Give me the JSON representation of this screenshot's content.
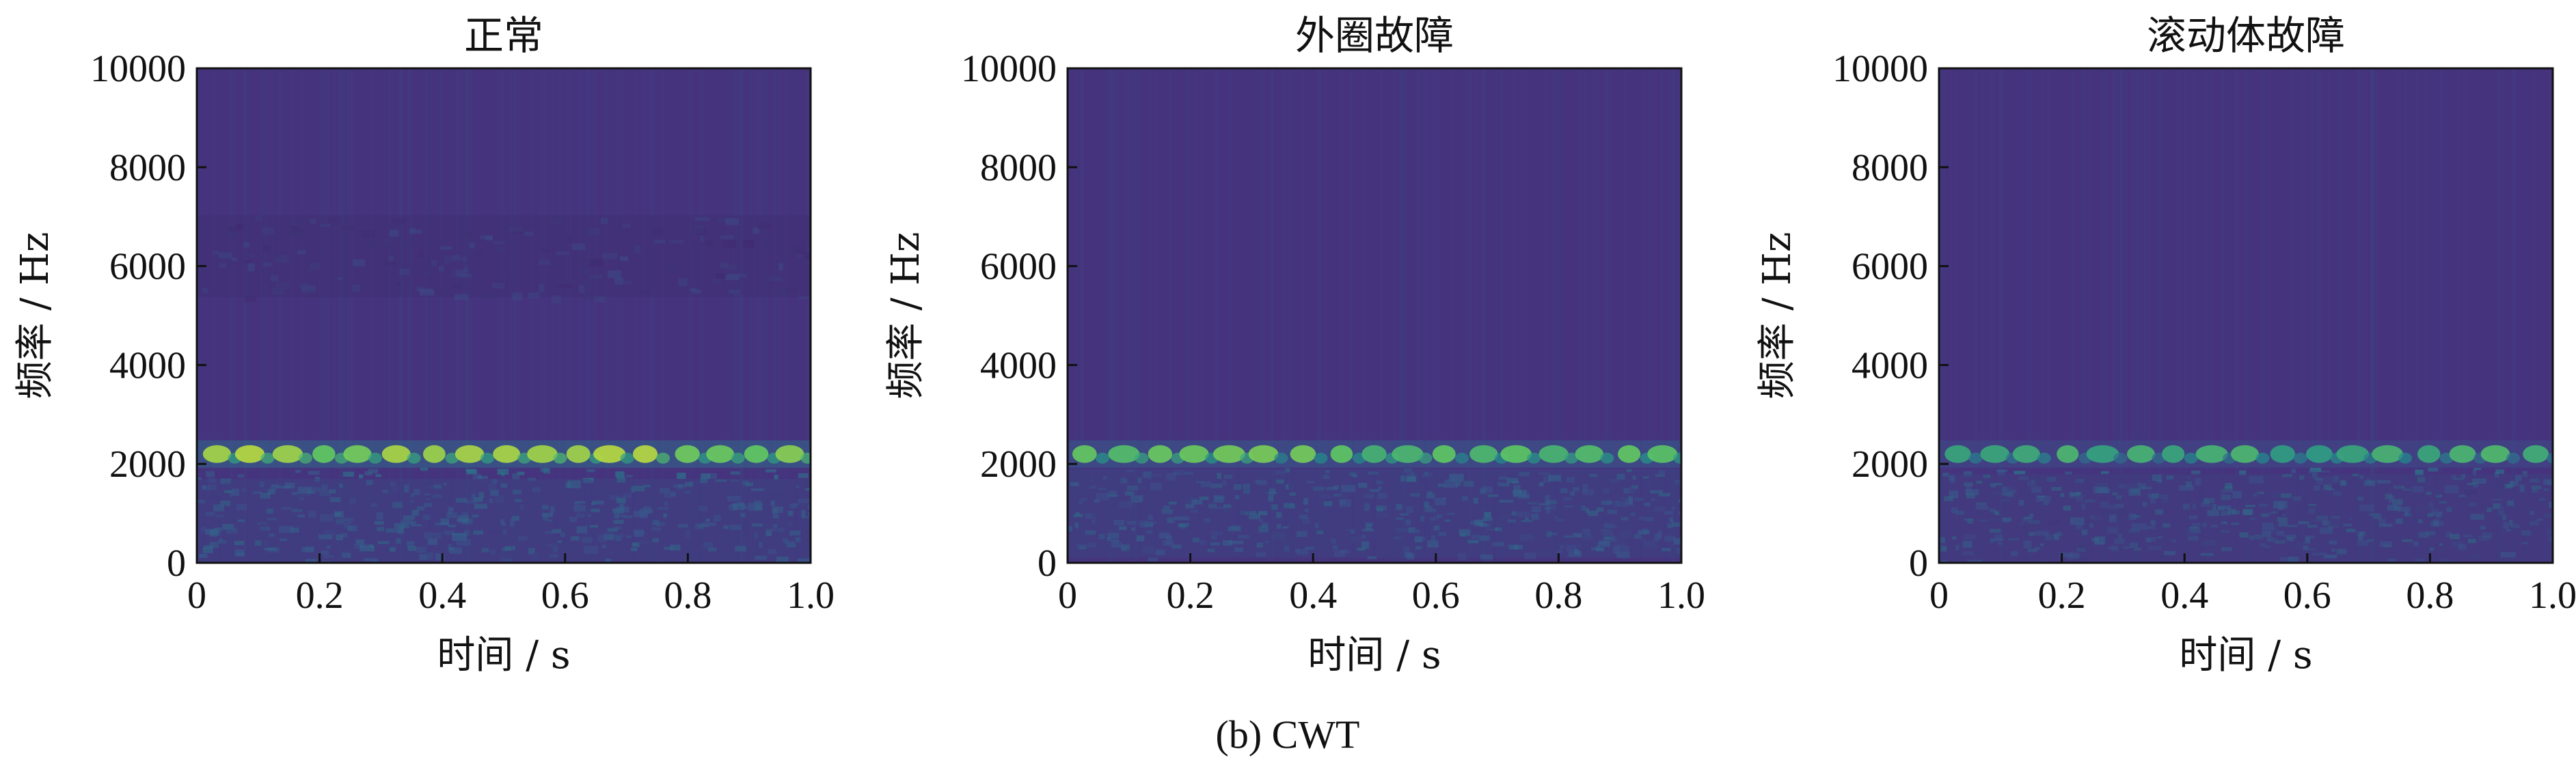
{
  "chart_data": [
    {
      "type": "heatmap",
      "title": "正常",
      "xlabel": "时间 / s",
      "ylabel": "频率 / Hz",
      "xlim": [
        0,
        1.0
      ],
      "ylim": [
        0,
        10000
      ],
      "xticks": [
        "0",
        "0.2",
        "0.4",
        "0.6",
        "0.8",
        "1.0"
      ],
      "yticks": [
        "0",
        "2000",
        "4000",
        "6000",
        "8000",
        "10000"
      ],
      "colormap": "viridis",
      "background_color": "#46337e",
      "bands": [
        {
          "freq_center": 2200,
          "intensity": 0.55,
          "periodic_peaks": true
        },
        {
          "freq_center": 6200,
          "intensity": 0.2,
          "periodic_peaks": false
        },
        {
          "freq_center": 800,
          "intensity": 0.3,
          "periodic_peaks": false
        }
      ]
    },
    {
      "type": "heatmap",
      "title": "外圈故障",
      "xlabel": "时间 / s",
      "ylabel": "频率 / Hz",
      "xlim": [
        0,
        1.0
      ],
      "ylim": [
        0,
        10000
      ],
      "xticks": [
        "0",
        "0.2",
        "0.4",
        "0.6",
        "0.8",
        "1.0"
      ],
      "yticks": [
        "0",
        "2000",
        "4000",
        "6000",
        "8000",
        "10000"
      ],
      "colormap": "viridis",
      "background_color": "#46337e",
      "bands": [
        {
          "freq_center": 2200,
          "intensity": 0.45,
          "periodic_peaks": true
        },
        {
          "freq_center": 1000,
          "intensity": 0.3,
          "periodic_peaks": false
        }
      ]
    },
    {
      "type": "heatmap",
      "title": "滚动体故障",
      "xlabel": "时间 / s",
      "ylabel": "频率 / Hz",
      "xlim": [
        0,
        1.0
      ],
      "ylim": [
        0,
        10000
      ],
      "xticks": [
        "0",
        "0.2",
        "0.4",
        "0.6",
        "0.8",
        "1.0"
      ],
      "yticks": [
        "0",
        "2000",
        "4000",
        "6000",
        "8000",
        "10000"
      ],
      "colormap": "viridis",
      "background_color": "#46337e",
      "bands": [
        {
          "freq_center": 2200,
          "intensity": 0.35,
          "periodic_peaks": true
        },
        {
          "freq_center": 900,
          "intensity": 0.28,
          "periodic_peaks": false
        }
      ]
    }
  ],
  "caption": "(b) CWT"
}
